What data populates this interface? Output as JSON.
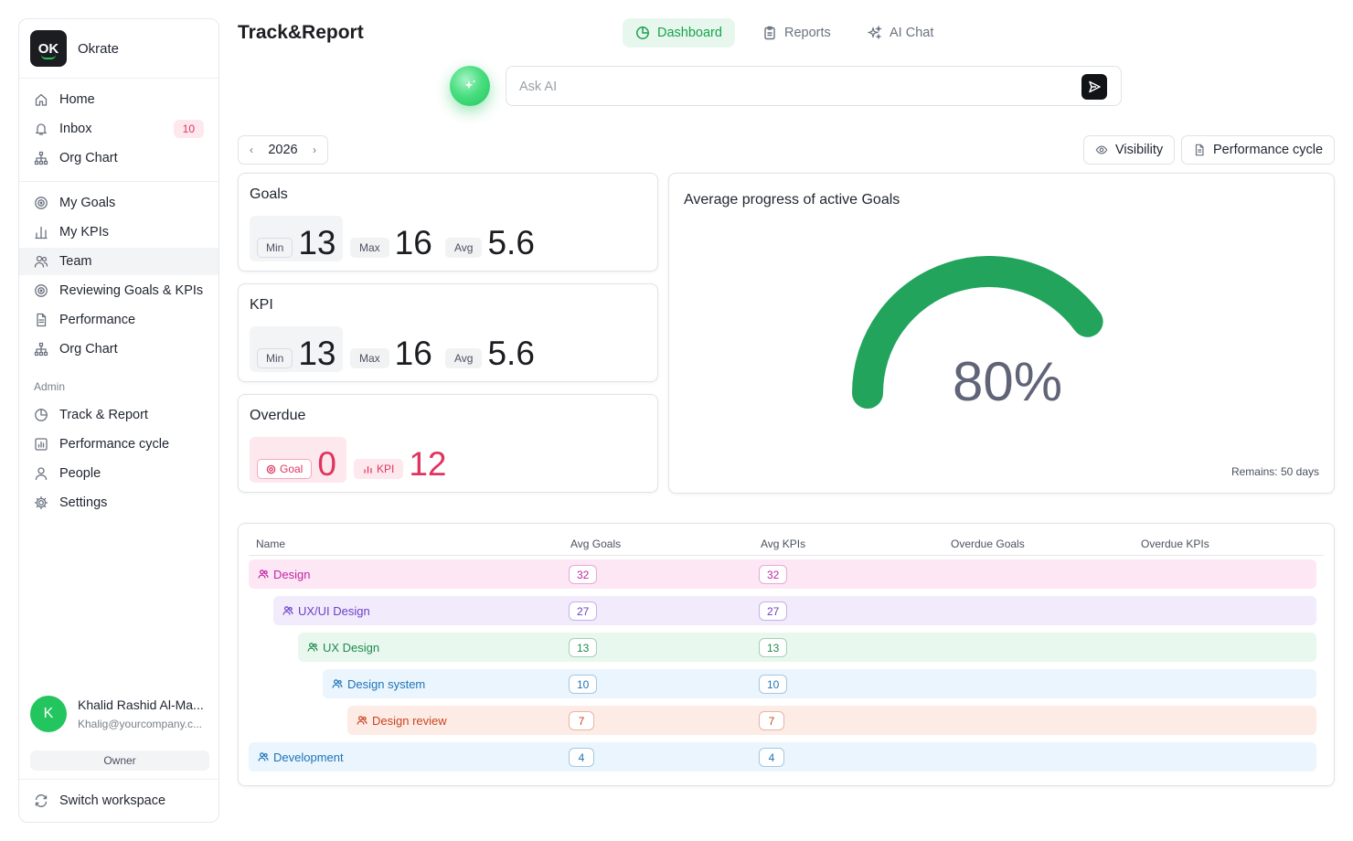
{
  "workspace": {
    "logo": "OK",
    "name": "Okrate"
  },
  "sidebar": {
    "group1": [
      {
        "label": "Home",
        "icon": "home-icon"
      },
      {
        "label": "Inbox",
        "icon": "bell-icon",
        "badge": "10"
      },
      {
        "label": "Org Chart",
        "icon": "org-chart-icon"
      }
    ],
    "group2": [
      {
        "label": "My Goals",
        "icon": "target-icon"
      },
      {
        "label": "My KPIs",
        "icon": "bar-chart-icon"
      },
      {
        "label": "Team",
        "icon": "users-icon",
        "active": true
      },
      {
        "label": "Reviewing Goals & KPIs",
        "icon": "target-icon"
      },
      {
        "label": "Performance",
        "icon": "document-icon"
      },
      {
        "label": "Org Chart",
        "icon": "org-chart-icon"
      }
    ],
    "admin_label": "Admin",
    "admin": [
      {
        "label": "Track & Report",
        "icon": "pie-chart-icon"
      },
      {
        "label": "Performance cycle",
        "icon": "chart-square-icon"
      },
      {
        "label": "People",
        "icon": "user-icon"
      },
      {
        "label": "Settings",
        "icon": "gear-icon"
      }
    ],
    "user": {
      "initial": "K",
      "name": "Khalid Rashid Al-Ma...",
      "email": "Khalig@yourcompany.c...",
      "role": "Owner"
    },
    "switch_workspace": "Switch workspace"
  },
  "header": {
    "title": "Track&Report",
    "tabs": [
      {
        "label": "Dashboard",
        "icon": "pie-chart-icon",
        "active": true
      },
      {
        "label": "Reports",
        "icon": "clipboard-icon"
      },
      {
        "label": "AI Chat",
        "icon": "sparkles-icon"
      }
    ],
    "ask_placeholder": "Ask AI"
  },
  "toolbar": {
    "year": "2026",
    "visibility": "Visibility",
    "performance_cycle": "Performance cycle"
  },
  "cards": {
    "goals": {
      "title": "Goals",
      "min_label": "Min",
      "min": "13",
      "max_label": "Max",
      "max": "16",
      "avg_label": "Avg",
      "avg": "5.6"
    },
    "kpi": {
      "title": "KPI",
      "min_label": "Min",
      "min": "13",
      "max_label": "Max",
      "max": "16",
      "avg_label": "Avg",
      "avg": "5.6"
    },
    "overdue": {
      "title": "Overdue",
      "goal_label": "Goal",
      "goal": "0",
      "kpi_label": "KPI",
      "kpi": "12"
    }
  },
  "gauge": {
    "title": "Average progress of active Goals",
    "value_text": "80%",
    "value": 80,
    "remains": "Remains: 50 days",
    "color": "#22a45d"
  },
  "table": {
    "headers": [
      "Name",
      "Avg Goals",
      "Avg KPIs",
      "Overdue Goals",
      "Overdue KPIs"
    ],
    "rows": [
      {
        "name": "Design",
        "avg_goals": "32",
        "avg_kpis": "32",
        "level": 0,
        "bg": "#fde7f4",
        "fg": "#c026a3"
      },
      {
        "name": "UX/UI Design",
        "avg_goals": "27",
        "avg_kpis": "27",
        "level": 1,
        "bg": "#f1ebfb",
        "fg": "#6d3fc8"
      },
      {
        "name": "UX Design",
        "avg_goals": "13",
        "avg_kpis": "13",
        "level": 2,
        "bg": "#e9f8ef",
        "fg": "#1f8a4c"
      },
      {
        "name": "Design system",
        "avg_goals": "10",
        "avg_kpis": "10",
        "level": 3,
        "bg": "#eaf5fd",
        "fg": "#1f74b8"
      },
      {
        "name": "Design review",
        "avg_goals": "7",
        "avg_kpis": "7",
        "level": 4,
        "bg": "#fdece6",
        "fg": "#c9431e"
      },
      {
        "name": "Development",
        "avg_goals": "4",
        "avg_kpis": "4",
        "level": 0,
        "bg": "#eaf5fd",
        "fg": "#1f74b8"
      }
    ]
  }
}
